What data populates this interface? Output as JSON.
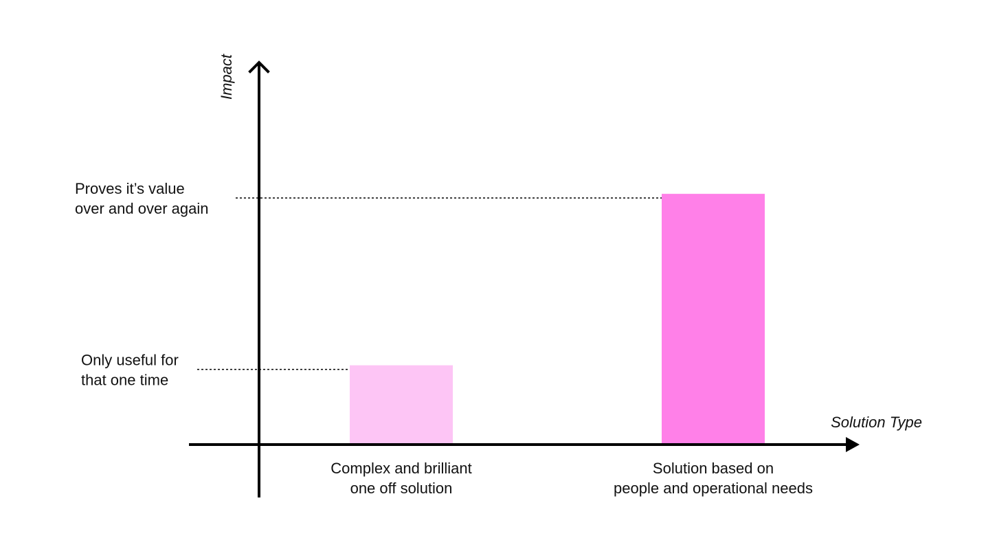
{
  "chart_data": {
    "type": "bar",
    "title": "",
    "xlabel": "Solution Type",
    "ylabel": "Impact",
    "categories": [
      [
        "Complex and brilliant",
        "one off solution"
      ],
      [
        "Solution based on",
        "people and operational needs"
      ]
    ],
    "values": [
      1,
      3.2
    ],
    "ylim": [
      0,
      4.7
    ],
    "bar_colors": [
      "#fdc5f5",
      "#ff80e8"
    ],
    "reference_lines": [
      {
        "value": 1,
        "label": [
          "Only useful for",
          "that one time"
        ],
        "style": "dotted"
      },
      {
        "value": 3.2,
        "label": [
          "Proves it’s value",
          "over and over again"
        ],
        "style": "dotted"
      }
    ],
    "grid": false,
    "legend": "none",
    "axis_color": "#000000"
  }
}
